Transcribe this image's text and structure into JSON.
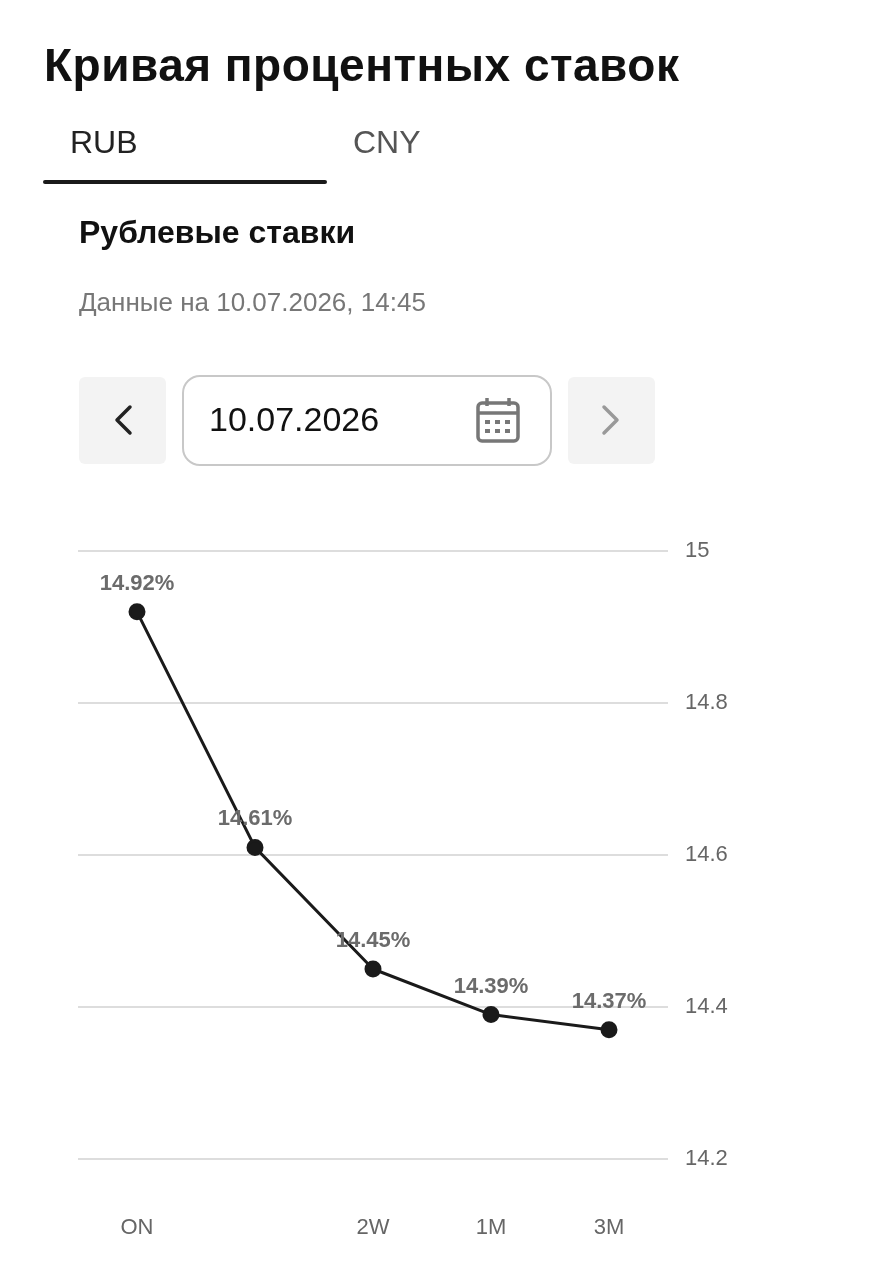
{
  "chart_data": {
    "type": "line",
    "title": "Кривая процентных ставок",
    "subtitle": "Рублевые ставки",
    "annotations": [
      "RUB",
      "CNY",
      "Данные на 10.07.2026, 14:45",
      "10.07.2026"
    ],
    "categories": [
      "ON",
      null,
      "2W",
      "1M",
      "3M"
    ],
    "series": [
      {
        "color": "#1a1a1a",
        "values": [
          14.92,
          14.61,
          14.45,
          14.39,
          14.37
        ],
        "value_labels": [
          "14.92%",
          "14.61%",
          "14.45%",
          "14.39%",
          "14.37%"
        ]
      }
    ],
    "ylim": [
      14.2,
      15
    ],
    "yticks": [
      14.2,
      14.4,
      14.6,
      14.8,
      15
    ],
    "grid": "y",
    "marker": "circle",
    "legend": false
  }
}
